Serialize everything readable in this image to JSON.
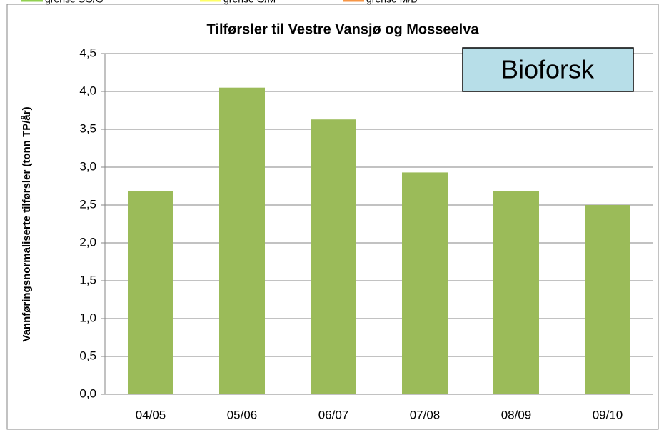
{
  "chart_data": {
    "type": "bar",
    "title": "Tilførsler til Vestre Vansjø og Mosseelva",
    "y_label": "Vannføringsnormaliserte tilførsler (tonn TP/år)",
    "annotation": "Bioforsk",
    "legend": [
      {
        "name": "grense SG/G",
        "color": "#92d050"
      },
      {
        "name": "grense G/M",
        "color": "#ffff66"
      },
      {
        "name": "grense M/B",
        "color": "#f79646"
      }
    ],
    "categories": [
      "04/05",
      "05/06",
      "06/07",
      "07/08",
      "08/09",
      "09/10"
    ],
    "values": [
      2.68,
      4.05,
      3.63,
      2.93,
      2.68,
      2.5
    ],
    "color": "#9bbb59",
    "ylim": [
      0,
      4.5
    ],
    "yticks": [
      {
        "value": 0,
        "label": "0,0"
      },
      {
        "value": 0.5,
        "label": "0,5"
      },
      {
        "value": 1,
        "label": "1,0"
      },
      {
        "value": 1.5,
        "label": "1,5"
      },
      {
        "value": 2,
        "label": "2,0"
      },
      {
        "value": 2.5,
        "label": "2,5"
      },
      {
        "value": 3,
        "label": "3,0"
      },
      {
        "value": 3.5,
        "label": "3,5"
      },
      {
        "value": 4,
        "label": "4,0"
      },
      {
        "value": 4.5,
        "label": "4,5"
      }
    ],
    "grid": true
  }
}
